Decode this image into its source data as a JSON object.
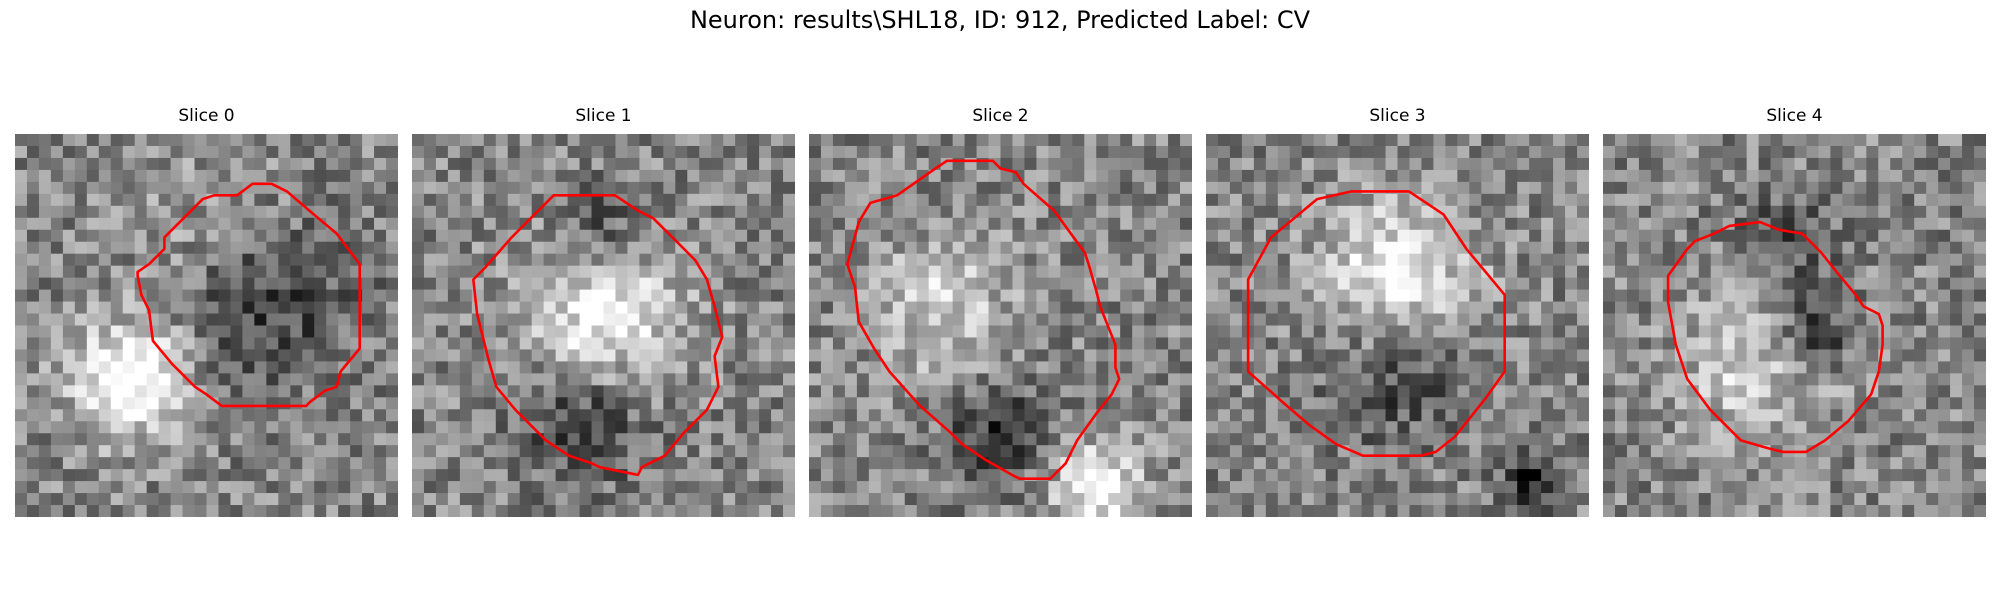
{
  "title": "Neuron: results\\SHL18, ID: 912, Predicted Label: CV",
  "outline_color": "#ff0000",
  "colormap": "grayscale",
  "panels": [
    {
      "label": "Slice 0",
      "seed": 11,
      "blobs": [
        [
          0.3,
          0.64,
          0.15,
          0.55
        ],
        [
          0.55,
          0.28,
          0.22,
          0.18
        ],
        [
          0.65,
          0.42,
          0.22,
          -0.35
        ]
      ],
      "contour": [
        [
          0.62,
          0.13
        ],
        [
          0.67,
          0.13
        ],
        [
          0.71,
          0.15
        ],
        [
          0.78,
          0.21
        ],
        [
          0.84,
          0.26
        ],
        [
          0.9,
          0.34
        ],
        [
          0.9,
          0.56
        ],
        [
          0.85,
          0.62
        ],
        [
          0.84,
          0.66
        ],
        [
          0.81,
          0.67
        ],
        [
          0.77,
          0.7
        ],
        [
          0.76,
          0.71
        ],
        [
          0.54,
          0.71
        ],
        [
          0.5,
          0.68
        ],
        [
          0.47,
          0.66
        ],
        [
          0.41,
          0.6
        ],
        [
          0.36,
          0.54
        ],
        [
          0.35,
          0.46
        ],
        [
          0.33,
          0.42
        ],
        [
          0.32,
          0.37
        ],
        [
          0.32,
          0.36
        ],
        [
          0.35,
          0.34
        ],
        [
          0.39,
          0.3
        ],
        [
          0.39,
          0.27
        ],
        [
          0.49,
          0.17
        ],
        [
          0.52,
          0.16
        ],
        [
          0.58,
          0.16
        ]
      ]
    },
    {
      "label": "Slice 1",
      "seed": 23,
      "blobs": [
        [
          0.5,
          0.47,
          0.2,
          0.45
        ],
        [
          0.45,
          0.75,
          0.16,
          -0.3
        ],
        [
          0.5,
          0.25,
          0.12,
          -0.25
        ]
      ],
      "contour": [
        [
          0.37,
          0.16
        ],
        [
          0.53,
          0.16
        ],
        [
          0.59,
          0.2
        ],
        [
          0.63,
          0.22
        ],
        [
          0.69,
          0.28
        ],
        [
          0.74,
          0.33
        ],
        [
          0.77,
          0.38
        ],
        [
          0.79,
          0.45
        ],
        [
          0.81,
          0.53
        ],
        [
          0.79,
          0.58
        ],
        [
          0.8,
          0.66
        ],
        [
          0.77,
          0.72
        ],
        [
          0.71,
          0.78
        ],
        [
          0.66,
          0.84
        ],
        [
          0.6,
          0.87
        ],
        [
          0.59,
          0.89
        ],
        [
          0.49,
          0.87
        ],
        [
          0.47,
          0.86
        ],
        [
          0.41,
          0.84
        ],
        [
          0.35,
          0.8
        ],
        [
          0.27,
          0.72
        ],
        [
          0.22,
          0.66
        ],
        [
          0.2,
          0.59
        ],
        [
          0.17,
          0.47
        ],
        [
          0.16,
          0.38
        ],
        [
          0.19,
          0.35
        ],
        [
          0.26,
          0.27
        ],
        [
          0.33,
          0.2
        ]
      ]
    },
    {
      "label": "Slice 2",
      "seed": 37,
      "blobs": [
        [
          0.35,
          0.45,
          0.18,
          0.3
        ],
        [
          0.75,
          0.92,
          0.12,
          0.45
        ],
        [
          0.5,
          0.78,
          0.14,
          -0.3
        ]
      ],
      "contour": [
        [
          0.33,
          0.09
        ],
        [
          0.36,
          0.07
        ],
        [
          0.48,
          0.07
        ],
        [
          0.5,
          0.09
        ],
        [
          0.54,
          0.1
        ],
        [
          0.56,
          0.13
        ],
        [
          0.64,
          0.2
        ],
        [
          0.72,
          0.31
        ],
        [
          0.73,
          0.34
        ],
        [
          0.75,
          0.41
        ],
        [
          0.76,
          0.45
        ],
        [
          0.8,
          0.55
        ],
        [
          0.8,
          0.61
        ],
        [
          0.81,
          0.64
        ],
        [
          0.79,
          0.68
        ],
        [
          0.75,
          0.73
        ],
        [
          0.7,
          0.8
        ],
        [
          0.67,
          0.86
        ],
        [
          0.63,
          0.9
        ],
        [
          0.55,
          0.9
        ],
        [
          0.53,
          0.89
        ],
        [
          0.46,
          0.85
        ],
        [
          0.4,
          0.81
        ],
        [
          0.37,
          0.78
        ],
        [
          0.29,
          0.71
        ],
        [
          0.21,
          0.62
        ],
        [
          0.17,
          0.56
        ],
        [
          0.13,
          0.49
        ],
        [
          0.12,
          0.4
        ],
        [
          0.1,
          0.34
        ],
        [
          0.13,
          0.23
        ],
        [
          0.16,
          0.18
        ],
        [
          0.23,
          0.16
        ]
      ]
    },
    {
      "label": "Slice 3",
      "seed": 53,
      "blobs": [
        [
          0.5,
          0.38,
          0.2,
          0.45
        ],
        [
          0.5,
          0.62,
          0.18,
          -0.28
        ],
        [
          0.85,
          0.9,
          0.08,
          -0.4
        ]
      ],
      "contour": [
        [
          0.29,
          0.17
        ],
        [
          0.38,
          0.15
        ],
        [
          0.53,
          0.15
        ],
        [
          0.62,
          0.21
        ],
        [
          0.68,
          0.3
        ],
        [
          0.73,
          0.36
        ],
        [
          0.78,
          0.42
        ],
        [
          0.78,
          0.62
        ],
        [
          0.73,
          0.69
        ],
        [
          0.65,
          0.79
        ],
        [
          0.6,
          0.83
        ],
        [
          0.56,
          0.84
        ],
        [
          0.41,
          0.84
        ],
        [
          0.34,
          0.81
        ],
        [
          0.27,
          0.76
        ],
        [
          0.2,
          0.7
        ],
        [
          0.11,
          0.62
        ],
        [
          0.11,
          0.38
        ],
        [
          0.17,
          0.27
        ]
      ]
    },
    {
      "label": "Slice 4",
      "seed": 71,
      "blobs": [
        [
          0.4,
          0.6,
          0.2,
          0.3
        ],
        [
          0.55,
          0.52,
          0.1,
          -0.4
        ],
        [
          0.48,
          0.28,
          0.12,
          -0.25
        ]
      ],
      "contour": [
        [
          0.29,
          0.26
        ],
        [
          0.33,
          0.24
        ],
        [
          0.41,
          0.23
        ],
        [
          0.46,
          0.25
        ],
        [
          0.52,
          0.26
        ],
        [
          0.57,
          0.31
        ],
        [
          0.61,
          0.36
        ],
        [
          0.66,
          0.42
        ],
        [
          0.68,
          0.45
        ],
        [
          0.72,
          0.47
        ],
        [
          0.73,
          0.5
        ],
        [
          0.73,
          0.55
        ],
        [
          0.72,
          0.62
        ],
        [
          0.7,
          0.68
        ],
        [
          0.64,
          0.75
        ],
        [
          0.58,
          0.8
        ],
        [
          0.53,
          0.83
        ],
        [
          0.47,
          0.83
        ],
        [
          0.43,
          0.82
        ],
        [
          0.36,
          0.8
        ],
        [
          0.28,
          0.72
        ],
        [
          0.22,
          0.64
        ],
        [
          0.19,
          0.55
        ],
        [
          0.17,
          0.44
        ],
        [
          0.17,
          0.37
        ],
        [
          0.22,
          0.3
        ],
        [
          0.24,
          0.28
        ]
      ]
    }
  ]
}
